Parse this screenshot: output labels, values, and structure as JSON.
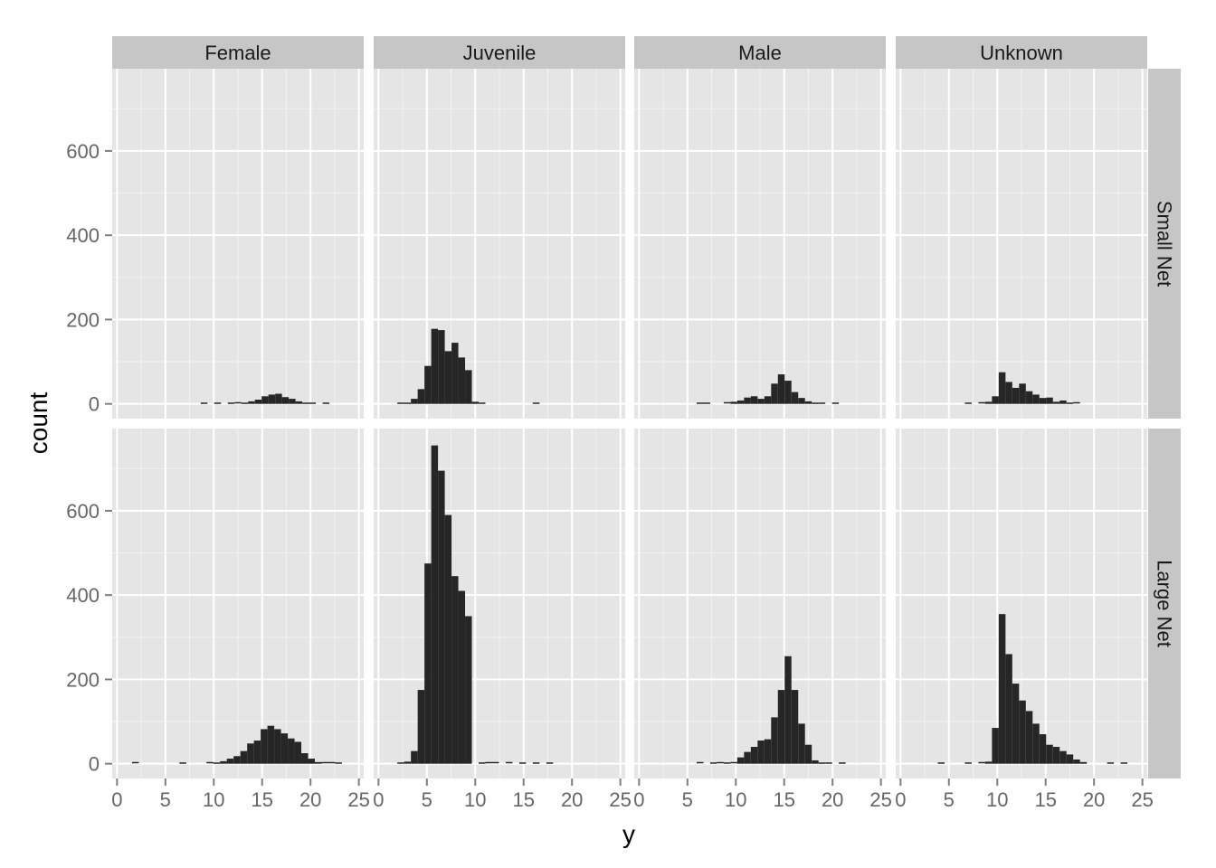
{
  "chart_data": {
    "type": "bar",
    "subtype": "faceted histogram",
    "xlabel": "y",
    "ylabel": "count",
    "xlim": [
      -0.5,
      25.5
    ],
    "ylim": [
      -35,
      795
    ],
    "x_ticks": [
      0,
      5,
      10,
      15,
      20,
      25
    ],
    "x_tick_labels": [
      "0",
      "5",
      "10",
      "15",
      "20",
      "25"
    ],
    "y_ticks": [
      0,
      200,
      400,
      600
    ],
    "y_tick_labels": [
      "0",
      "200",
      "400",
      "600"
    ],
    "bin_width": 0.7,
    "grid": true,
    "columns": [
      "Female",
      "Juvenile",
      "Male",
      "Unknown"
    ],
    "rows": [
      "Small Net",
      "Large Net"
    ],
    "colors": {
      "panel_bg": "#e5e5e5",
      "grid_major": "#ffffff",
      "grid_minor": "#f2f2f2",
      "strip_bg": "#c6c6c6",
      "bar": "#262626",
      "tick_label": "#666666",
      "axis_title": "#000000"
    },
    "panels": [
      {
        "column": "Female",
        "row": "Small Net",
        "bins": [
          [
            9.0,
            1
          ],
          [
            10.4,
            1
          ],
          [
            11.8,
            1
          ],
          [
            12.5,
            2
          ],
          [
            13.2,
            3
          ],
          [
            13.9,
            6
          ],
          [
            14.6,
            10
          ],
          [
            15.3,
            18
          ],
          [
            16.0,
            22
          ],
          [
            16.7,
            24
          ],
          [
            17.4,
            16
          ],
          [
            18.1,
            12
          ],
          [
            18.8,
            6
          ],
          [
            19.5,
            3
          ],
          [
            20.2,
            1
          ],
          [
            21.6,
            1
          ]
        ]
      },
      {
        "column": "Juvenile",
        "row": "Small Net",
        "bins": [
          [
            2.3,
            1
          ],
          [
            3.0,
            3
          ],
          [
            3.7,
            12
          ],
          [
            4.4,
            35
          ],
          [
            5.1,
            90
          ],
          [
            5.8,
            178
          ],
          [
            6.5,
            175
          ],
          [
            7.2,
            125
          ],
          [
            7.9,
            145
          ],
          [
            8.6,
            110
          ],
          [
            9.3,
            80
          ],
          [
            10.0,
            5
          ],
          [
            10.7,
            1
          ],
          [
            16.3,
            1
          ]
        ]
      },
      {
        "column": "Male",
        "row": "Small Net",
        "bins": [
          [
            6.3,
            1
          ],
          [
            7.0,
            1
          ],
          [
            9.1,
            2
          ],
          [
            9.8,
            5
          ],
          [
            10.5,
            8
          ],
          [
            11.2,
            15
          ],
          [
            11.9,
            18
          ],
          [
            12.6,
            12
          ],
          [
            13.3,
            18
          ],
          [
            14.0,
            48
          ],
          [
            14.7,
            70
          ],
          [
            15.4,
            55
          ],
          [
            16.1,
            28
          ],
          [
            16.8,
            14
          ],
          [
            17.5,
            6
          ],
          [
            18.2,
            3
          ],
          [
            18.9,
            1
          ],
          [
            20.3,
            1
          ]
        ]
      },
      {
        "column": "Unknown",
        "row": "Small Net",
        "bins": [
          [
            7.0,
            1
          ],
          [
            8.4,
            2
          ],
          [
            9.1,
            5
          ],
          [
            9.8,
            18
          ],
          [
            10.5,
            75
          ],
          [
            11.2,
            52
          ],
          [
            11.9,
            38
          ],
          [
            12.6,
            48
          ],
          [
            13.3,
            30
          ],
          [
            14.0,
            22
          ],
          [
            14.7,
            14
          ],
          [
            15.4,
            15
          ],
          [
            16.1,
            5
          ],
          [
            16.8,
            8
          ],
          [
            17.5,
            3
          ],
          [
            18.2,
            2
          ]
        ]
      },
      {
        "column": "Female",
        "row": "Large Net",
        "bins": [
          [
            1.9,
            2
          ],
          [
            6.8,
            1
          ],
          [
            9.6,
            2
          ],
          [
            10.3,
            3
          ],
          [
            11.0,
            6
          ],
          [
            11.7,
            12
          ],
          [
            12.4,
            18
          ],
          [
            13.1,
            30
          ],
          [
            13.8,
            48
          ],
          [
            14.5,
            55
          ],
          [
            15.2,
            82
          ],
          [
            15.9,
            90
          ],
          [
            16.6,
            82
          ],
          [
            17.3,
            72
          ],
          [
            18.0,
            60
          ],
          [
            18.7,
            52
          ],
          [
            19.4,
            25
          ],
          [
            20.1,
            12
          ],
          [
            20.8,
            4
          ],
          [
            21.5,
            2
          ],
          [
            22.2,
            2
          ],
          [
            22.9,
            1
          ]
        ]
      },
      {
        "column": "Juvenile",
        "row": "Large Net",
        "bins": [
          [
            2.3,
            1
          ],
          [
            3.0,
            5
          ],
          [
            3.7,
            30
          ],
          [
            4.4,
            175
          ],
          [
            5.1,
            475
          ],
          [
            5.8,
            755
          ],
          [
            6.5,
            695
          ],
          [
            7.2,
            590
          ],
          [
            7.9,
            445
          ],
          [
            8.6,
            410
          ],
          [
            9.3,
            350
          ],
          [
            10.7,
            1
          ],
          [
            11.4,
            2
          ],
          [
            12.1,
            2
          ],
          [
            13.5,
            2
          ],
          [
            14.9,
            1
          ],
          [
            16.3,
            1
          ],
          [
            17.7,
            1
          ]
        ]
      },
      {
        "column": "Male",
        "row": "Large Net",
        "bins": [
          [
            6.3,
            2
          ],
          [
            7.7,
            1
          ],
          [
            8.4,
            2
          ],
          [
            9.1,
            1
          ],
          [
            9.8,
            2
          ],
          [
            10.5,
            15
          ],
          [
            11.2,
            28
          ],
          [
            11.9,
            40
          ],
          [
            12.6,
            55
          ],
          [
            13.3,
            58
          ],
          [
            14.0,
            110
          ],
          [
            14.7,
            175
          ],
          [
            15.4,
            255
          ],
          [
            16.1,
            175
          ],
          [
            16.8,
            95
          ],
          [
            17.5,
            45
          ],
          [
            18.2,
            8
          ],
          [
            18.9,
            3
          ],
          [
            19.6,
            1
          ],
          [
            21.0,
            1
          ]
        ]
      },
      {
        "column": "Unknown",
        "row": "Large Net",
        "bins": [
          [
            4.2,
            1
          ],
          [
            7.0,
            1
          ],
          [
            8.4,
            2
          ],
          [
            9.1,
            5
          ],
          [
            9.8,
            85
          ],
          [
            10.5,
            355
          ],
          [
            11.2,
            260
          ],
          [
            11.9,
            190
          ],
          [
            12.6,
            150
          ],
          [
            13.3,
            125
          ],
          [
            14.0,
            95
          ],
          [
            14.7,
            70
          ],
          [
            15.4,
            45
          ],
          [
            16.1,
            40
          ],
          [
            16.8,
            30
          ],
          [
            17.5,
            22
          ],
          [
            18.2,
            10
          ],
          [
            18.9,
            4
          ],
          [
            21.7,
            1
          ],
          [
            23.1,
            1
          ]
        ]
      }
    ]
  }
}
